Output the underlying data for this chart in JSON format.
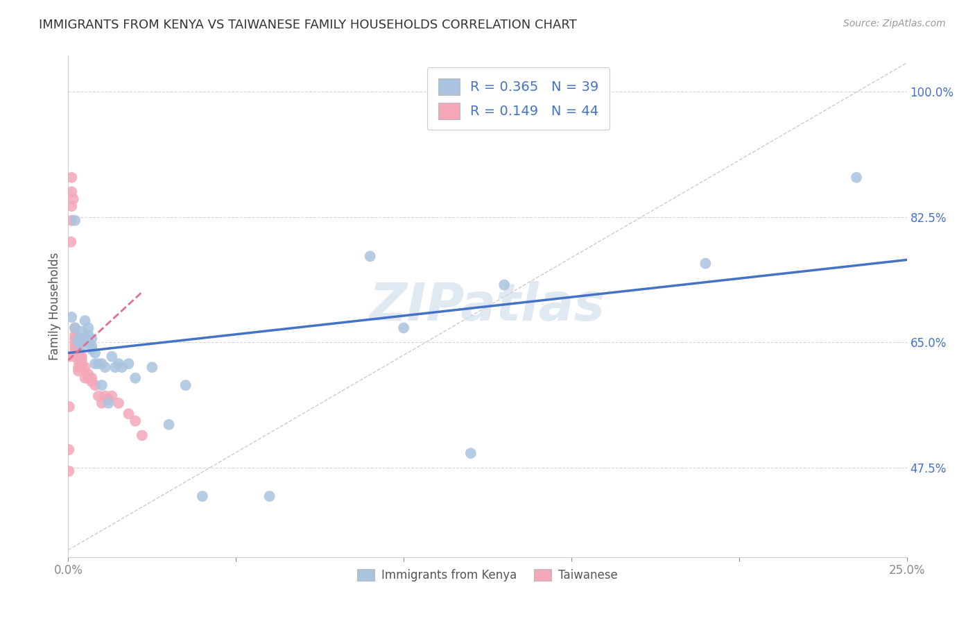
{
  "title": "IMMIGRANTS FROM KENYA VS TAIWANESE FAMILY HOUSEHOLDS CORRELATION CHART",
  "source": "Source: ZipAtlas.com",
  "ylabel": "Family Households",
  "xlabel_blue": "Immigrants from Kenya",
  "xlabel_pink": "Taiwanese",
  "xlim": [
    0.0,
    0.25
  ],
  "ylim": [
    0.35,
    1.05
  ],
  "xtick_vals": [
    0.0,
    0.05,
    0.1,
    0.15,
    0.2,
    0.25
  ],
  "xtick_labels_show": {
    "0.0": "0.0%",
    "0.25": "25.0%"
  },
  "ytick_vals": [
    0.475,
    0.65,
    0.825,
    1.0
  ],
  "ytick_labels": [
    "47.5%",
    "65.0%",
    "82.5%",
    "100.0%"
  ],
  "R_blue": 0.365,
  "N_blue": 39,
  "R_pink": 0.149,
  "N_pink": 44,
  "blue_scatter_x": [
    0.001,
    0.002,
    0.002,
    0.003,
    0.003,
    0.004,
    0.004,
    0.005,
    0.005,
    0.006,
    0.006,
    0.006,
    0.007,
    0.007,
    0.007,
    0.008,
    0.008,
    0.009,
    0.01,
    0.01,
    0.011,
    0.012,
    0.013,
    0.014,
    0.015,
    0.016,
    0.018,
    0.02,
    0.025,
    0.03,
    0.035,
    0.04,
    0.06,
    0.09,
    0.1,
    0.12,
    0.13,
    0.19,
    0.235
  ],
  "blue_scatter_y": [
    0.685,
    0.82,
    0.67,
    0.655,
    0.65,
    0.665,
    0.645,
    0.68,
    0.655,
    0.66,
    0.65,
    0.67,
    0.645,
    0.655,
    0.64,
    0.635,
    0.62,
    0.62,
    0.59,
    0.62,
    0.615,
    0.565,
    0.63,
    0.615,
    0.62,
    0.615,
    0.62,
    0.6,
    0.615,
    0.535,
    0.59,
    0.435,
    0.435,
    0.77,
    0.67,
    0.495,
    0.73,
    0.76,
    0.88
  ],
  "pink_scatter_x": [
    0.0002,
    0.0002,
    0.0003,
    0.0005,
    0.0008,
    0.001,
    0.001,
    0.001,
    0.001,
    0.0015,
    0.002,
    0.002,
    0.002,
    0.002,
    0.002,
    0.002,
    0.002,
    0.003,
    0.003,
    0.003,
    0.003,
    0.003,
    0.003,
    0.003,
    0.004,
    0.004,
    0.004,
    0.004,
    0.005,
    0.005,
    0.006,
    0.006,
    0.007,
    0.007,
    0.008,
    0.009,
    0.01,
    0.011,
    0.012,
    0.013,
    0.015,
    0.018,
    0.02,
    0.022
  ],
  "pink_scatter_y": [
    0.47,
    0.5,
    0.56,
    0.63,
    0.79,
    0.82,
    0.84,
    0.86,
    0.88,
    0.85,
    0.63,
    0.64,
    0.645,
    0.655,
    0.66,
    0.67,
    0.65,
    0.61,
    0.615,
    0.625,
    0.63,
    0.635,
    0.64,
    0.645,
    0.615,
    0.62,
    0.625,
    0.63,
    0.6,
    0.615,
    0.6,
    0.605,
    0.595,
    0.6,
    0.59,
    0.575,
    0.565,
    0.575,
    0.57,
    0.575,
    0.565,
    0.55,
    0.54,
    0.52
  ],
  "blue_line_x": [
    0.0,
    0.25
  ],
  "blue_line_y": [
    0.635,
    0.765
  ],
  "pink_line_x": [
    0.0,
    0.022
  ],
  "pink_line_y": [
    0.625,
    0.72
  ],
  "diag_line_x": [
    0.0,
    0.25
  ],
  "diag_line_y": [
    0.36,
    1.04
  ],
  "watermark": "ZIPatlas",
  "background_color": "#ffffff",
  "blue_color": "#aac4e0",
  "blue_line_color": "#4472c4",
  "pink_color": "#f4a7b9",
  "pink_line_color": "#e07090",
  "legend_text_color": "#4472c4",
  "title_color": "#333333",
  "grid_color": "#cccccc",
  "axis_label_color": "#4472c4"
}
